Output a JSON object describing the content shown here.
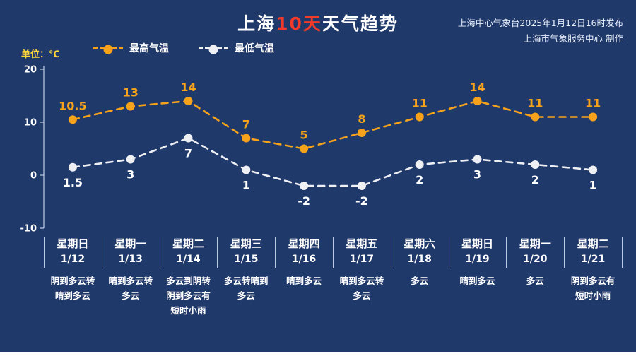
{
  "title": {
    "part1": "上海",
    "part2": "10天",
    "part3": "天气趋势"
  },
  "publisher": {
    "line1": "上海中心气象台2025年1月12日16时发布",
    "line2": "上海市气象服务中心 制作"
  },
  "unit_label": "单位：℃",
  "legend": {
    "high": "最高气温",
    "low": "最低气温"
  },
  "colors": {
    "background": "#20396b",
    "high": "#f7a21b",
    "low": "#eef0f4",
    "axis": "#c3d0e8",
    "title_accent": "#f23a2b",
    "unit_text": "#ffd83d",
    "text": "#ffffff",
    "separator": "#bcc9e4"
  },
  "chart_data": {
    "type": "line",
    "title": "上海10天天气趋势",
    "unit": "℃",
    "ylim": [
      -10,
      20
    ],
    "yticks": [
      20,
      10,
      0,
      -10
    ],
    "grid": false,
    "line_style": "dashed",
    "legend_position": "top-left",
    "categories": [
      {
        "day": "星期日",
        "date": "1/12",
        "desc": [
          "阴到多云转",
          "晴到多云"
        ]
      },
      {
        "day": "星期一",
        "date": "1/13",
        "desc": [
          "晴到多云转",
          "多云"
        ]
      },
      {
        "day": "星期二",
        "date": "1/14",
        "desc": [
          "多云到阴转",
          "阴到多云有",
          "短时小雨"
        ]
      },
      {
        "day": "星期三",
        "date": "1/15",
        "desc": [
          "多云转晴到",
          "多云"
        ]
      },
      {
        "day": "星期四",
        "date": "1/16",
        "desc": [
          "晴到多云"
        ]
      },
      {
        "day": "星期五",
        "date": "1/17",
        "desc": [
          "晴到多云转",
          "多云"
        ]
      },
      {
        "day": "星期六",
        "date": "1/18",
        "desc": [
          "多云"
        ]
      },
      {
        "day": "星期日",
        "date": "1/19",
        "desc": [
          "晴到多云"
        ]
      },
      {
        "day": "星期一",
        "date": "1/20",
        "desc": [
          "多云"
        ]
      },
      {
        "day": "星期二",
        "date": "1/21",
        "desc": [
          "阴到多云有",
          "短时小雨"
        ]
      }
    ],
    "series": [
      {
        "name": "最高气温",
        "color": "#f7a21b",
        "label_color": "#f7a21b",
        "label_position": "above",
        "values": [
          10.5,
          13,
          14,
          7,
          5,
          8,
          11,
          14,
          11,
          11
        ]
      },
      {
        "name": "最低气温",
        "color": "#eef0f4",
        "label_color": "#ffffff",
        "label_position": "below",
        "values": [
          1.5,
          3,
          7,
          1,
          -2,
          -2,
          2,
          3,
          2,
          1
        ]
      }
    ]
  }
}
